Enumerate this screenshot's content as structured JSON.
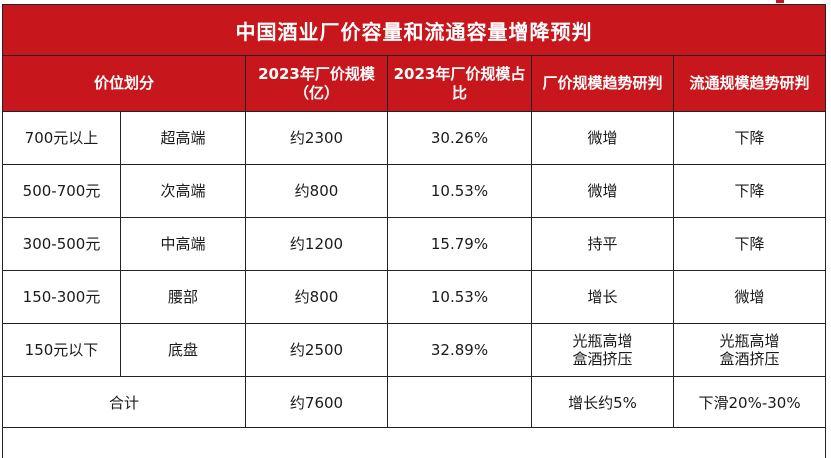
{
  "title": "中国酒业厂价容量和流通容量增降预判",
  "headers": {
    "price_tier": "价位划分",
    "scale_2023": "2023年厂价规模（亿）",
    "share_2023": "2023年厂价规模占比",
    "factory_trend": "厂价规模趋势研判",
    "channel_trend": "流通规模趋势研判"
  },
  "rows": [
    {
      "range": "700元以上",
      "segment": "超高端",
      "scale": "约2300",
      "share": "30.26%",
      "factory_trend": "微增",
      "channel_trend": "下降"
    },
    {
      "range": "500-700元",
      "segment": "次高端",
      "scale": "约800",
      "share": "10.53%",
      "factory_trend": "微增",
      "channel_trend": "下降"
    },
    {
      "range": "300-500元",
      "segment": "中高端",
      "scale": "约1200",
      "share": "15.79%",
      "factory_trend": "持平",
      "channel_trend": "下降"
    },
    {
      "range": "150-300元",
      "segment": "腰部",
      "scale": "约800",
      "share": "10.53%",
      "factory_trend": "增长",
      "channel_trend": "微增"
    },
    {
      "range": "150元以下",
      "segment": "底盘",
      "scale": "约2500",
      "share": "32.89%",
      "factory_trend": "光瓶高增\n盒酒挤压",
      "channel_trend": "光瓶高增\n盒酒挤压"
    }
  ],
  "total": {
    "label": "合计",
    "scale": "约7600",
    "share": "",
    "factory_trend": "增长约5%",
    "channel_trend": "下滑20%-30%"
  },
  "colors": {
    "header_red": "#c8161d",
    "header_text": "#ffffff",
    "border": "#222222",
    "body_text": "#1a1a1a"
  }
}
